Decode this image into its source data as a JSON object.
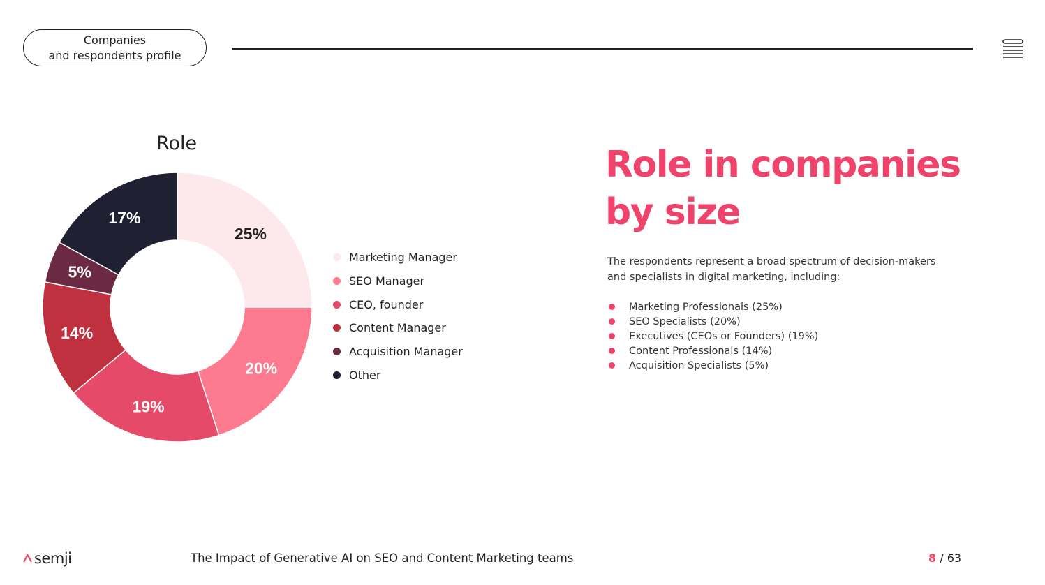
{
  "header": {
    "section_pill_line1": "Companies",
    "section_pill_line2": "and respondents profile",
    "menu_icon": "hamburger-menu-icon"
  },
  "chart_data": {
    "type": "pie",
    "title": "Role",
    "categories": [
      "Marketing Manager",
      "SEO Manager",
      "CEO, founder",
      "Content Manager",
      "Acquisition Manager",
      "Other"
    ],
    "values": [
      25,
      20,
      19,
      14,
      5,
      17
    ],
    "labels": [
      "25%",
      "20%",
      "19%",
      "14%",
      "5%",
      "17%"
    ],
    "colors": [
      "#fde8ec",
      "#fe7a8e",
      "#e54a68",
      "#c03140",
      "#6b2a42",
      "#202033"
    ],
    "label_colors": [
      "#222222",
      "#ffffff",
      "#ffffff",
      "#ffffff",
      "#ffffff",
      "#ffffff"
    ],
    "legend_position": "right",
    "donut": true
  },
  "legend": {
    "items": [
      "Marketing Manager",
      "SEO Manager",
      "CEO, founder",
      "Content Manager",
      "Acquisition Manager",
      "Other"
    ]
  },
  "content": {
    "heading": "Role in companies by size",
    "intro": "The respondents represent a broad spectrum of decision-makers and specialists in digital marketing, including:",
    "bullets": [
      "Marketing Professionals (25%)",
      "SEO Specialists (20%)",
      "Executives (CEOs or Founders) (19%)",
      "Content Professionals (14%)",
      "Acquisition Specialists (5%)"
    ],
    "accent_color": "#f0436b"
  },
  "footer": {
    "logo_text": "semji",
    "title": "The Impact of Generative AI on SEO and Content Marketing teams",
    "page_current": "8",
    "page_separator": "/",
    "page_total": "63"
  }
}
